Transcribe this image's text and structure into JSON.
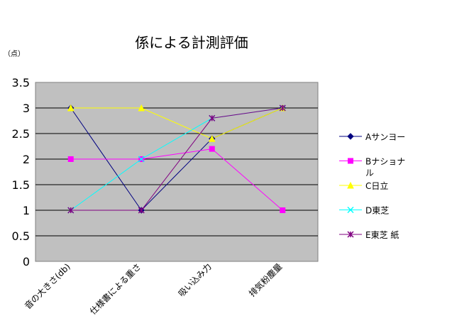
{
  "chart_data": {
    "type": "line",
    "title": "係による計測評価",
    "ylabel": "（点）",
    "xlabel": "",
    "categories": [
      "音の大きさ(db)",
      "仕様書による重さ",
      "吸い込み力",
      "排気粉塵量"
    ],
    "ylim": [
      0,
      3.5
    ],
    "yticks": [
      "0",
      "0.5",
      "1",
      "1.5",
      "2",
      "2.5",
      "3",
      "3.5"
    ],
    "grid": true,
    "legend_position": "right",
    "plot_background": "#c0c0c0",
    "series": [
      {
        "name": "Aサンヨー",
        "values": [
          3,
          1,
          2.4,
          3
        ],
        "color": "#000080",
        "marker": "diamond"
      },
      {
        "name": "Bナショナル",
        "values": [
          2,
          2,
          2.2,
          1
        ],
        "color": "#ff00ff",
        "marker": "square"
      },
      {
        "name": "C日立",
        "values": [
          3,
          3,
          2.4,
          3
        ],
        "color": "#ffff00",
        "marker": "triangle"
      },
      {
        "name": "D東芝",
        "values": [
          1,
          2,
          2.8,
          3
        ],
        "color": "#00ffff",
        "marker": "x"
      },
      {
        "name": "E東芝 紙",
        "values": [
          1,
          1,
          2.8,
          3
        ],
        "color": "#800080",
        "marker": "star"
      }
    ]
  }
}
